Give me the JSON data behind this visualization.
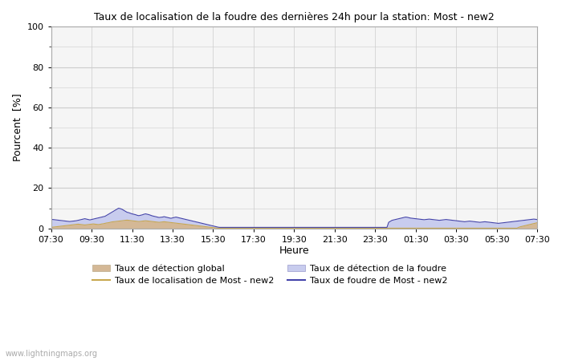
{
  "title": "Taux de localisation de la foudre des dernières 24h pour la station: Most - new2",
  "xlabel": "Heure",
  "ylabel": "Pourcent  [%]",
  "watermark": "www.lightningmaps.org",
  "x_ticks": [
    "07:30",
    "09:30",
    "11:30",
    "13:30",
    "15:30",
    "17:30",
    "19:30",
    "21:30",
    "23:30",
    "01:30",
    "03:30",
    "05:30",
    "07:30"
  ],
  "ylim": [
    0,
    100
  ],
  "yticks": [
    0,
    20,
    40,
    60,
    80,
    100
  ],
  "bg_color": "#ffffff",
  "plot_bg_color": "#f5f5f5",
  "grid_color": "#cccccc",
  "fill_global_color": "#d4b896",
  "fill_foudre_color": "#c8ccee",
  "line_local_color": "#c8a850",
  "line_foudre_color": "#4444aa",
  "legend_labels": [
    "Taux de détection global",
    "Taux de localisation de Most - new2",
    "Taux de détection de la foudre",
    "Taux de foudre de Most - new2"
  ],
  "global_detection": [
    0.5,
    0.6,
    0.7,
    0.8,
    0.9,
    1.0,
    1.1,
    1.2,
    1.3,
    1.4,
    1.5,
    1.6,
    1.7,
    1.8,
    1.9,
    2.0,
    2.1,
    2.0,
    1.9,
    1.8,
    1.7,
    1.8,
    1.9,
    2.0,
    2.1,
    2.2,
    2.1,
    2.0,
    1.9,
    2.0,
    2.2,
    2.3,
    2.5,
    2.7,
    2.8,
    3.0,
    3.2,
    3.3,
    3.4,
    3.5,
    3.6,
    3.7,
    3.8,
    3.9,
    4.0,
    4.1,
    4.0,
    3.9,
    3.8,
    3.7,
    3.6,
    3.5,
    3.4,
    3.5,
    3.6,
    3.7,
    3.8,
    3.7,
    3.6,
    3.5,
    3.4,
    3.3,
    3.2,
    3.1,
    3.0,
    3.1,
    3.2,
    3.3,
    3.2,
    3.1,
    3.0,
    2.9,
    2.8,
    2.7,
    2.6,
    2.5,
    2.4,
    2.3,
    2.2,
    2.1,
    2.0,
    1.9,
    1.8,
    1.7,
    1.6,
    1.5,
    1.4,
    1.3,
    1.2,
    1.1,
    1.0,
    0.9,
    0.8,
    0.7,
    0.6,
    0.5,
    0.4,
    0.3,
    0.2,
    0.1,
    0.1,
    0.1,
    0.1,
    0.1,
    0.1,
    0.1,
    0.1,
    0.1,
    0.1,
    0.1,
    0.1,
    0.1,
    0.1,
    0.1,
    0.1,
    0.1,
    0.1,
    0.1,
    0.1,
    0.1,
    0.1,
    0.1,
    0.1,
    0.1,
    0.1,
    0.1,
    0.1,
    0.1,
    0.1,
    0.1,
    0.1,
    0.1,
    0.1,
    0.1,
    0.1,
    0.1,
    0.1,
    0.1,
    0.1,
    0.1,
    0.1,
    0.1,
    0.1,
    0.1,
    0.1,
    0.1,
    0.1,
    0.1,
    0.1,
    0.1,
    0.1,
    0.1,
    0.1,
    0.1,
    0.1,
    0.1,
    0.1,
    0.1,
    0.1,
    0.1,
    0.1,
    0.1,
    0.1,
    0.1,
    0.1,
    0.1,
    0.1,
    0.1,
    0.1,
    0.1,
    0.1,
    0.1,
    0.1,
    0.1,
    0.1,
    0.1,
    0.1,
    0.1,
    0.1,
    0.1,
    0.1,
    0.1,
    0.1,
    0.1,
    0.1,
    0.1,
    0.1,
    0.1,
    0.1,
    0.1,
    0.1,
    0.1,
    0.1,
    0.1,
    0.1,
    0.1,
    0.1,
    0.1,
    0.1,
    0.1,
    0.1,
    0.1,
    0.1,
    0.1,
    0.1,
    0.1,
    0.1,
    0.1,
    0.1,
    0.1,
    0.1,
    0.1,
    0.1,
    0.1,
    0.1,
    0.1,
    0.1,
    0.1,
    0.1,
    0.1,
    0.1,
    0.1,
    0.1,
    0.1,
    0.1,
    0.1,
    0.1,
    0.1,
    0.1,
    0.1,
    0.1,
    0.1,
    0.1,
    0.1,
    0.1,
    0.1,
    0.1,
    0.1,
    0.1,
    0.1,
    0.1,
    0.1,
    0.1,
    0.1,
    0.1,
    0.1,
    0.1,
    0.1,
    0.1,
    0.1,
    0.1,
    0.1,
    0.1,
    0.1,
    0.1,
    0.1,
    0.1,
    0.1,
    0.1,
    0.1,
    0.1,
    0.1,
    0.1,
    0.1,
    0.1,
    0.1,
    0.1,
    0.1,
    0.1,
    0.1,
    0.1,
    0.1,
    0.1,
    0.1,
    0.1,
    0.1,
    0.1,
    0.5,
    0.8,
    1.0,
    1.2,
    1.4,
    1.6,
    1.8,
    2.0,
    2.2,
    2.4,
    2.6,
    2.8,
    3.0
  ],
  "foudre_detection": [
    4.5,
    4.4,
    4.3,
    4.2,
    4.1,
    4.0,
    3.9,
    3.8,
    3.7,
    3.6,
    3.5,
    3.4,
    3.5,
    3.6,
    3.7,
    3.8,
    4.0,
    4.2,
    4.4,
    4.6,
    4.8,
    4.6,
    4.4,
    4.2,
    4.4,
    4.6,
    4.8,
    5.0,
    5.2,
    5.4,
    5.6,
    5.8,
    6.0,
    6.5,
    7.0,
    7.5,
    8.0,
    8.5,
    9.0,
    9.5,
    10.0,
    9.8,
    9.5,
    9.0,
    8.5,
    8.0,
    7.8,
    7.5,
    7.2,
    7.0,
    6.8,
    6.5,
    6.3,
    6.5,
    6.7,
    7.0,
    7.2,
    7.0,
    6.8,
    6.5,
    6.2,
    6.0,
    5.8,
    5.6,
    5.4,
    5.5,
    5.6,
    5.8,
    5.6,
    5.4,
    5.2,
    5.0,
    5.2,
    5.4,
    5.6,
    5.4,
    5.2,
    5.0,
    4.8,
    4.6,
    4.4,
    4.2,
    4.0,
    3.8,
    3.6,
    3.4,
    3.2,
    3.0,
    2.8,
    2.6,
    2.4,
    2.2,
    2.0,
    1.8,
    1.6,
    1.4,
    1.2,
    1.0,
    0.8,
    0.6,
    0.5,
    0.5,
    0.5,
    0.5,
    0.5,
    0.5,
    0.5,
    0.5,
    0.5,
    0.5,
    0.5,
    0.5,
    0.5,
    0.5,
    0.5,
    0.5,
    0.5,
    0.5,
    0.5,
    0.5,
    0.5,
    0.5,
    0.5,
    0.5,
    0.5,
    0.5,
    0.5,
    0.5,
    0.5,
    0.5,
    0.5,
    0.5,
    0.5,
    0.5,
    0.5,
    0.5,
    0.5,
    0.5,
    0.5,
    0.5,
    0.5,
    0.5,
    0.5,
    0.5,
    0.5,
    0.5,
    0.5,
    0.5,
    0.5,
    0.5,
    0.5,
    0.5,
    0.5,
    0.5,
    0.5,
    0.5,
    0.5,
    0.5,
    0.5,
    0.5,
    0.5,
    0.5,
    0.5,
    0.5,
    0.5,
    0.5,
    0.5,
    0.5,
    0.5,
    0.5,
    0.5,
    0.5,
    0.5,
    0.5,
    0.5,
    0.5,
    0.5,
    0.5,
    0.5,
    0.5,
    0.5,
    0.5,
    0.5,
    0.5,
    0.5,
    0.5,
    0.5,
    0.5,
    0.5,
    0.5,
    0.5,
    0.5,
    0.5,
    0.5,
    0.5,
    0.5,
    0.5,
    0.5,
    0.5,
    0.5,
    3.0,
    3.5,
    4.0,
    4.2,
    4.4,
    4.6,
    4.8,
    5.0,
    5.2,
    5.4,
    5.6,
    5.5,
    5.3,
    5.1,
    5.0,
    4.9,
    4.8,
    4.7,
    4.6,
    4.5,
    4.4,
    4.3,
    4.4,
    4.5,
    4.6,
    4.5,
    4.4,
    4.3,
    4.2,
    4.1,
    4.0,
    4.1,
    4.2,
    4.3,
    4.4,
    4.3,
    4.2,
    4.1,
    4.0,
    3.9,
    3.8,
    3.7,
    3.6,
    3.5,
    3.4,
    3.3,
    3.4,
    3.5,
    3.6,
    3.5,
    3.4,
    3.3,
    3.2,
    3.1,
    3.0,
    3.1,
    3.2,
    3.3,
    3.2,
    3.1,
    3.0,
    2.9,
    2.8,
    2.7,
    2.6,
    2.5,
    2.6,
    2.7,
    2.8,
    2.9,
    3.0,
    3.1,
    3.2,
    3.3,
    3.4,
    3.5,
    3.6,
    3.7,
    3.8,
    3.9,
    4.0,
    4.1,
    4.2,
    4.3,
    4.4,
    4.5,
    4.6,
    4.5,
    4.4
  ]
}
